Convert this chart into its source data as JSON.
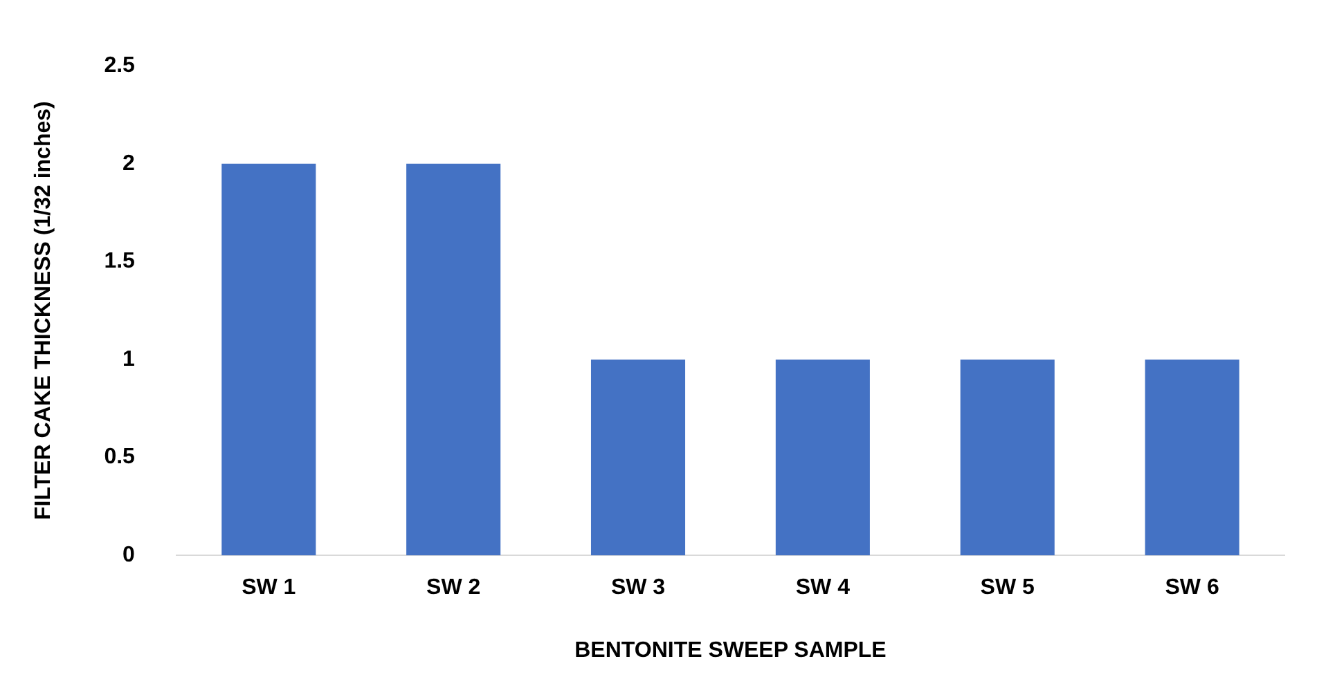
{
  "chart_data": {
    "type": "bar",
    "xlabel": "BENTONITE SWEEP SAMPLE",
    "ylabel": "FILTER CAKE THICKNESS (1/32 inches)",
    "categories": [
      "SW 1",
      "SW 2",
      "SW 3",
      "SW 4",
      "SW 5",
      "SW 6"
    ],
    "values": [
      2,
      2,
      1,
      1,
      1,
      1
    ],
    "color": "#4472c4",
    "ylim": [
      0,
      2.5
    ],
    "yticks": [
      0,
      0.5,
      1,
      1.5,
      2,
      2.5
    ],
    "grid": false,
    "legend": false
  }
}
